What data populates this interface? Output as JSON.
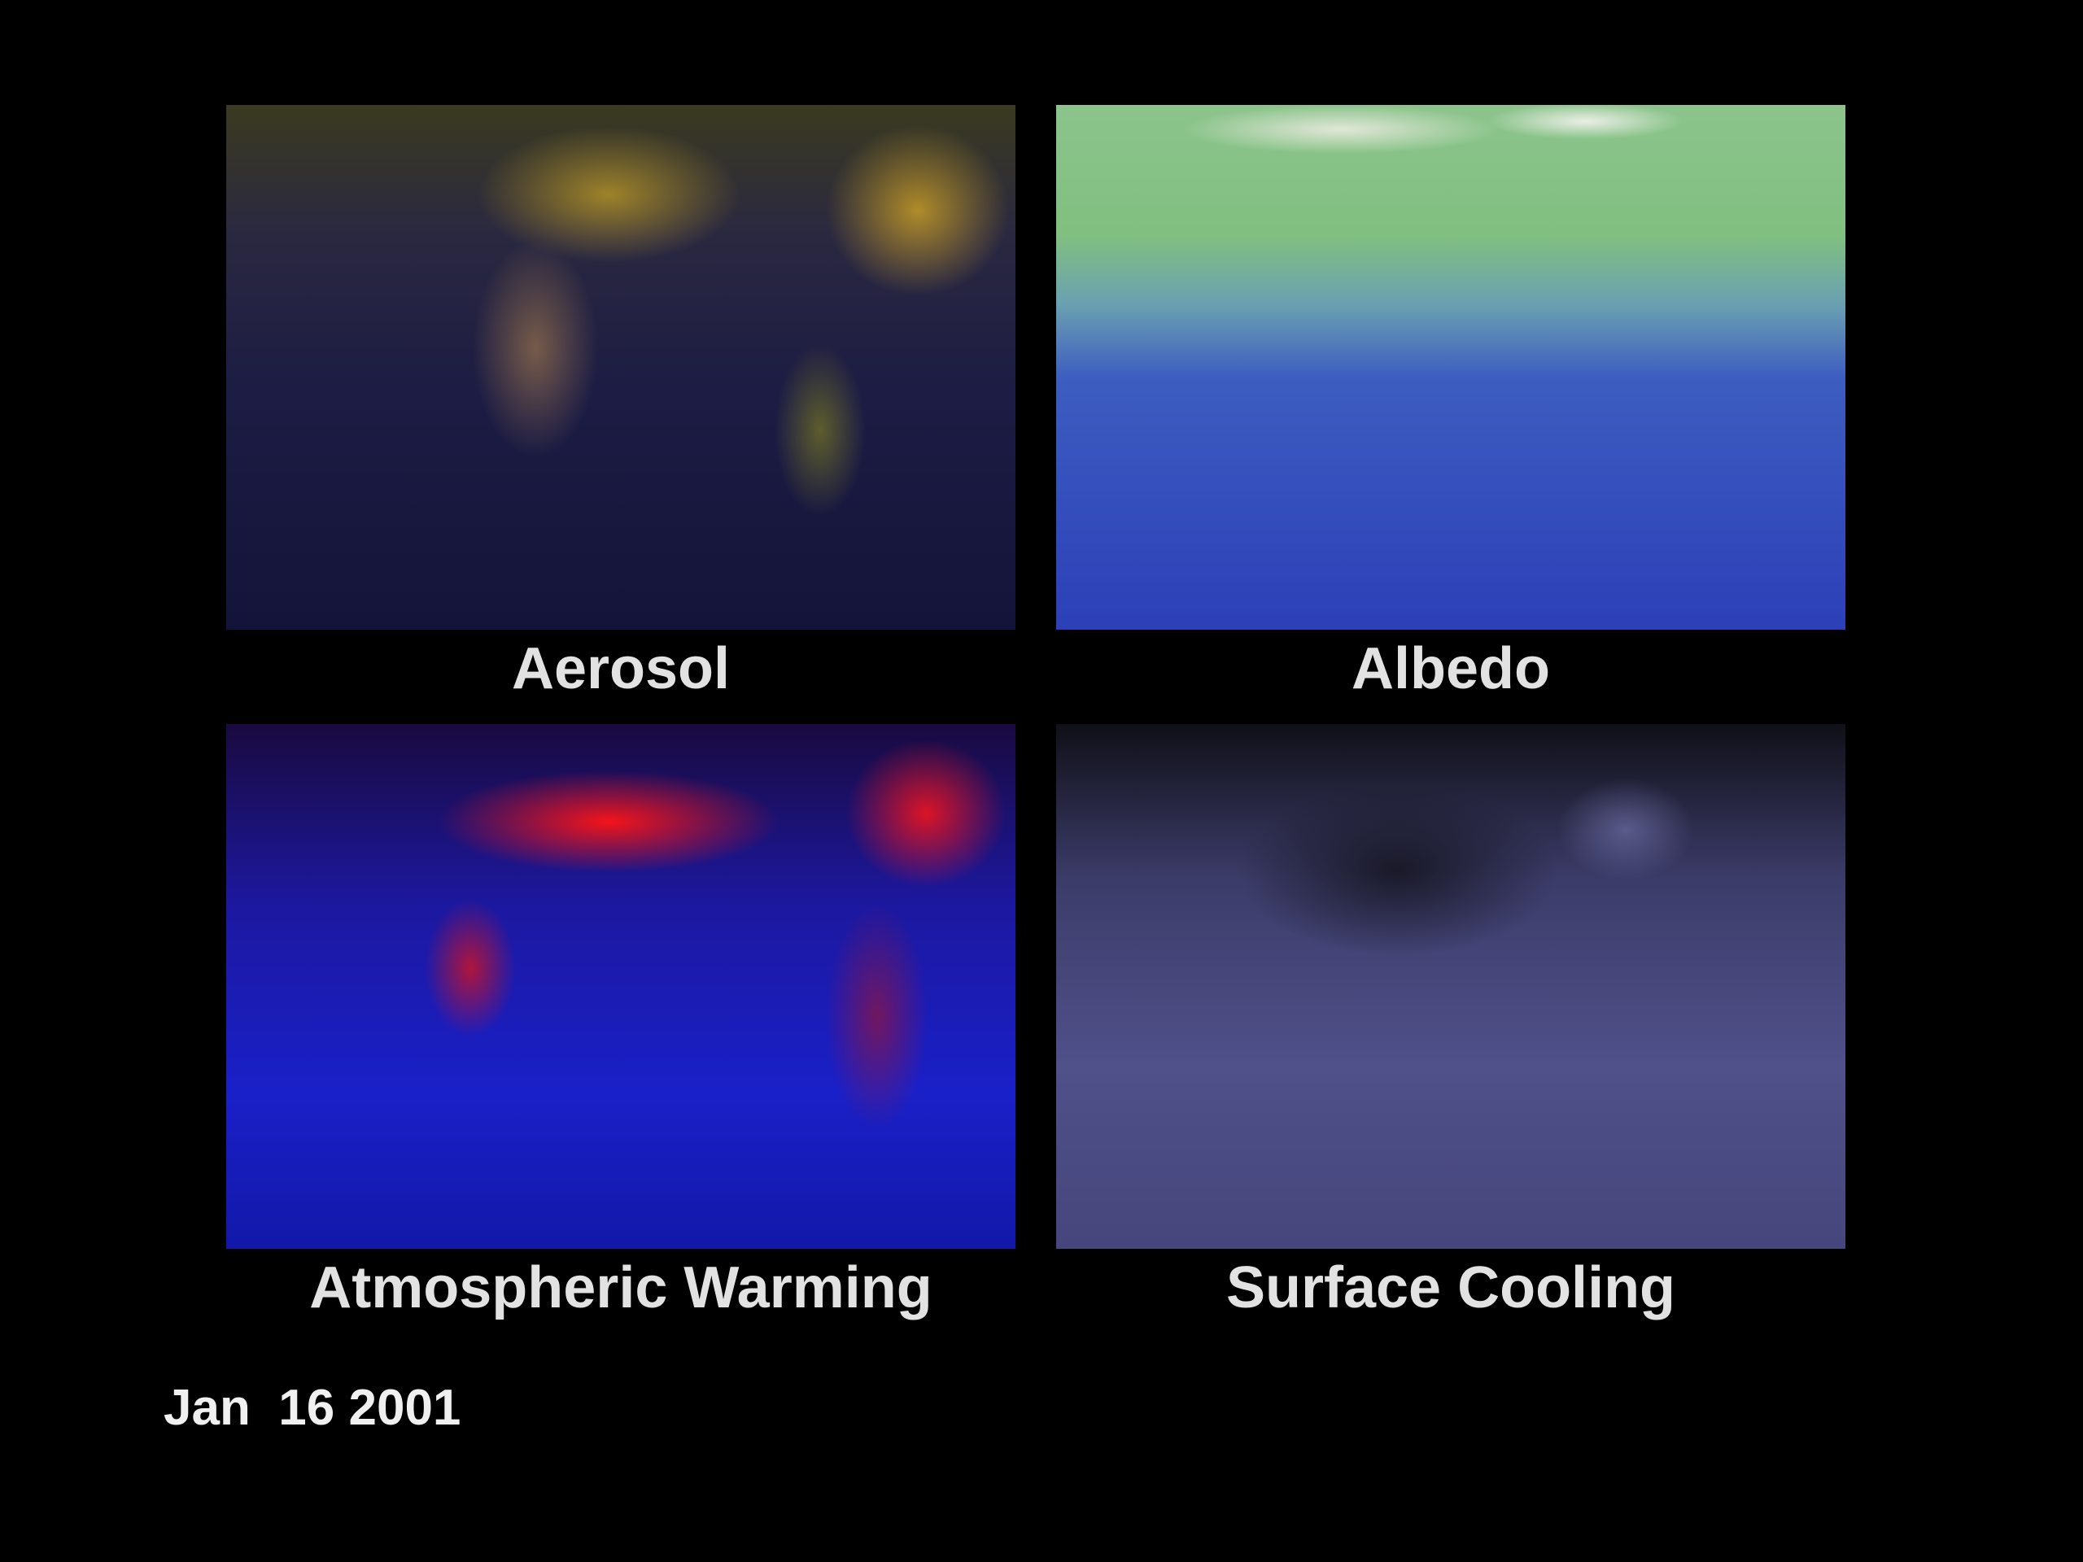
{
  "panels": [
    {
      "label": "Aerosol"
    },
    {
      "label": "Albedo"
    },
    {
      "label": "Atmospheric Warming"
    },
    {
      "label": "Surface Cooling"
    }
  ],
  "date": "Jan  16 2001"
}
